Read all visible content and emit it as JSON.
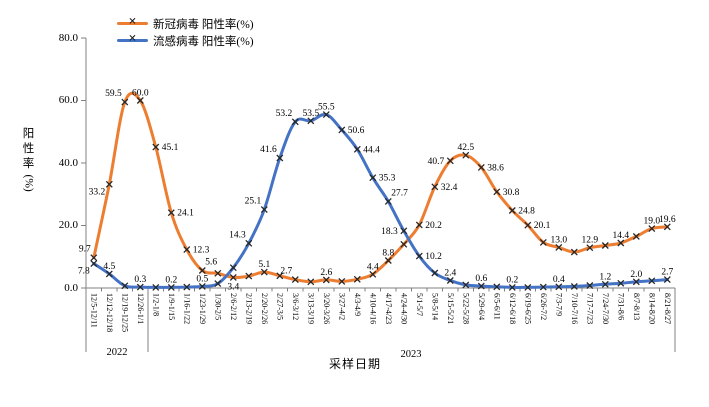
{
  "legend": {
    "items": [
      {
        "label": "新冠病毒 阳性率(%)",
        "color": "#ED7D31"
      },
      {
        "label": "流感病毒 阳性率(%)",
        "color": "#4472C4"
      }
    ]
  },
  "axes": {
    "y_title": "阳性率(%)",
    "x_title": "采样日期",
    "y_ticks": [
      "0.0",
      "20.0",
      "40.0",
      "60.0",
      "80.0"
    ],
    "year_groups": [
      {
        "label": "2022"
      },
      {
        "label": "2023"
      }
    ]
  },
  "chart_data": {
    "type": "line",
    "title": "",
    "xlabel": "采样日期",
    "ylabel": "阳性率(%)",
    "ylim": [
      0,
      80
    ],
    "grid": false,
    "legend_position": "top",
    "marker": "x",
    "categories": [
      "12/5-12/11",
      "12/12-12/18",
      "12/19-12/25",
      "12/26-1/1",
      "1/2-1/8",
      "1/9-1/15",
      "1/16-1/22",
      "1/23-1/29",
      "1/30-2/5",
      "2/6-2/12",
      "2/13-2/19",
      "2/20-2/26",
      "2/27-3/5",
      "3/6-3/12",
      "3/13-3/19",
      "3/20-3/26",
      "3/27-4/2",
      "4/3-4/9",
      "4/10-4/16",
      "4/17-4/23",
      "4/24-4/30",
      "5/1-5/7",
      "5/8-5/14",
      "5/15-5/21",
      "5/22-5/28",
      "5/29-6/4",
      "6/5-6/11",
      "6/12-6/18",
      "6/19-6/25",
      "6/26-7/2",
      "7/3-7/9",
      "7/10-7/16",
      "7/17-7/23",
      "7/24-7/30",
      "7/31-8/6",
      "8/7-8/13",
      "8/14-8/20",
      "8/21-8/27"
    ],
    "series": [
      {
        "name": "新冠病毒 阳性率(%)",
        "color": "#ED7D31",
        "values": [
          9.7,
          33.2,
          59.5,
          60.0,
          45.1,
          24.1,
          12.3,
          5.6,
          4.7,
          3.4,
          3.8,
          5.1,
          3.9,
          2.7,
          2.0,
          2.6,
          2.1,
          2.8,
          4.4,
          8.8,
          14.0,
          20.2,
          32.4,
          40.7,
          42.5,
          38.6,
          30.8,
          24.8,
          20.1,
          14.6,
          13.0,
          11.5,
          12.9,
          13.6,
          14.4,
          16.5,
          19.0,
          19.6
        ],
        "labels": [
          "9.7",
          "33.2",
          "59.5",
          "60.0",
          "45.1",
          "24.1",
          "12.3",
          "5.6",
          "",
          "3.4",
          "",
          "5.1",
          "",
          "2.7",
          "",
          "2.6",
          "",
          "",
          "4.4",
          "8.8",
          "",
          "20.2",
          "32.4",
          "40.7",
          "42.5",
          "38.6",
          "30.8",
          "24.8",
          "20.1",
          "",
          "13.0",
          "",
          "12.9",
          "",
          "14.4",
          "",
          "19.0",
          "19.6"
        ],
        "label_pos": [
          "la",
          "lb",
          "la",
          "a",
          "r",
          "r",
          "r",
          "ra",
          "",
          "b",
          "",
          "a",
          "",
          "la",
          "",
          "a",
          "",
          "",
          "a",
          "a",
          "",
          "r",
          "r",
          "l",
          "a",
          "r",
          "r",
          "r",
          "r",
          "",
          "a",
          "",
          "a",
          "",
          "a",
          "",
          "a",
          "a"
        ]
      },
      {
        "name": "流感病毒 阳性率(%)",
        "color": "#4472C4",
        "values": [
          7.8,
          4.5,
          0.7,
          0.3,
          0.2,
          0.2,
          0.3,
          0.5,
          1.4,
          6.5,
          14.3,
          25.1,
          41.6,
          53.2,
          53.5,
          55.5,
          50.6,
          44.4,
          35.3,
          27.7,
          18.3,
          10.2,
          4.8,
          2.4,
          1.0,
          0.6,
          0.4,
          0.2,
          0.2,
          0.3,
          0.4,
          0.5,
          0.8,
          1.2,
          1.5,
          2.0,
          2.3,
          2.7
        ],
        "labels": [
          "7.8",
          "4.5",
          "",
          "0.3",
          "",
          "0.2",
          "",
          "0.5",
          "",
          "",
          "14.3",
          "25.1",
          "41.6",
          "53.2",
          "53.5",
          "55.5",
          "50.6",
          "44.4",
          "35.3",
          "27.7",
          "18.3",
          "10.2",
          "",
          "2.4",
          "",
          "0.6",
          "",
          "0.2",
          "",
          "",
          "0.4",
          "",
          "",
          "1.2",
          "",
          "2.0",
          "",
          "2.7"
        ],
        "label_pos": [
          "lb",
          "a",
          "",
          "a",
          "",
          "a",
          "",
          "a",
          "",
          "",
          "la",
          "la",
          "la",
          "la",
          "a",
          "a",
          "r",
          "r",
          "r",
          "ra",
          "l",
          "r",
          "",
          "a",
          "",
          "a",
          "",
          "a",
          "",
          "",
          "a",
          "",
          "",
          "a",
          "",
          "a",
          "",
          "a"
        ]
      }
    ]
  }
}
